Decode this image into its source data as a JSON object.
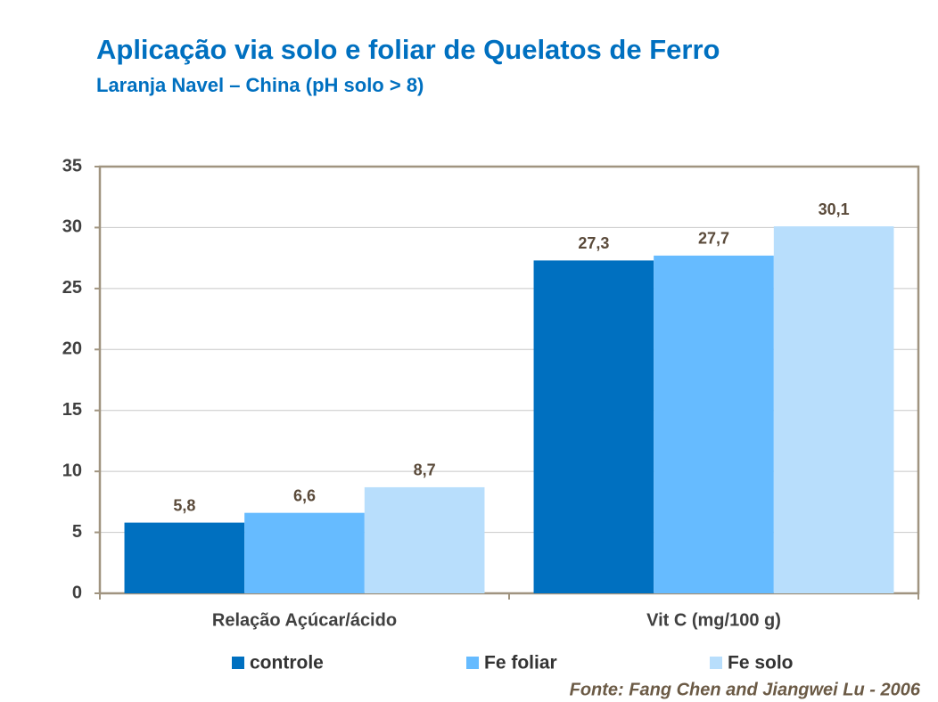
{
  "chart_data": {
    "type": "bar",
    "title": "Aplicação via solo e foliar de Quelatos de Ferro",
    "subtitle": "Laranja Navel – China (pH solo > 8)",
    "categories": [
      "Relação Açúcar/ácido",
      "Vit C (mg/100 g)"
    ],
    "series": [
      {
        "name": "controle",
        "color": "#0070c0",
        "values": [
          5.8,
          27.3
        ],
        "value_labels": [
          "5,8",
          "27,3"
        ]
      },
      {
        "name": "Fe foliar",
        "color": "#66bbff",
        "values": [
          6.6,
          27.7
        ],
        "value_labels": [
          "6,6",
          "27,7"
        ]
      },
      {
        "name": "Fe solo",
        "color": "#b8defc",
        "values": [
          8.7,
          30.1
        ],
        "value_labels": [
          "8,7",
          "30,1"
        ]
      }
    ],
    "ylim": [
      0,
      35
    ],
    "yticks": [
      0,
      5,
      10,
      15,
      20,
      25,
      30,
      35
    ],
    "grid": true,
    "legend": "bottom",
    "source": "Fonte: Fang Chen and Jiangwei Lu - 2006"
  }
}
